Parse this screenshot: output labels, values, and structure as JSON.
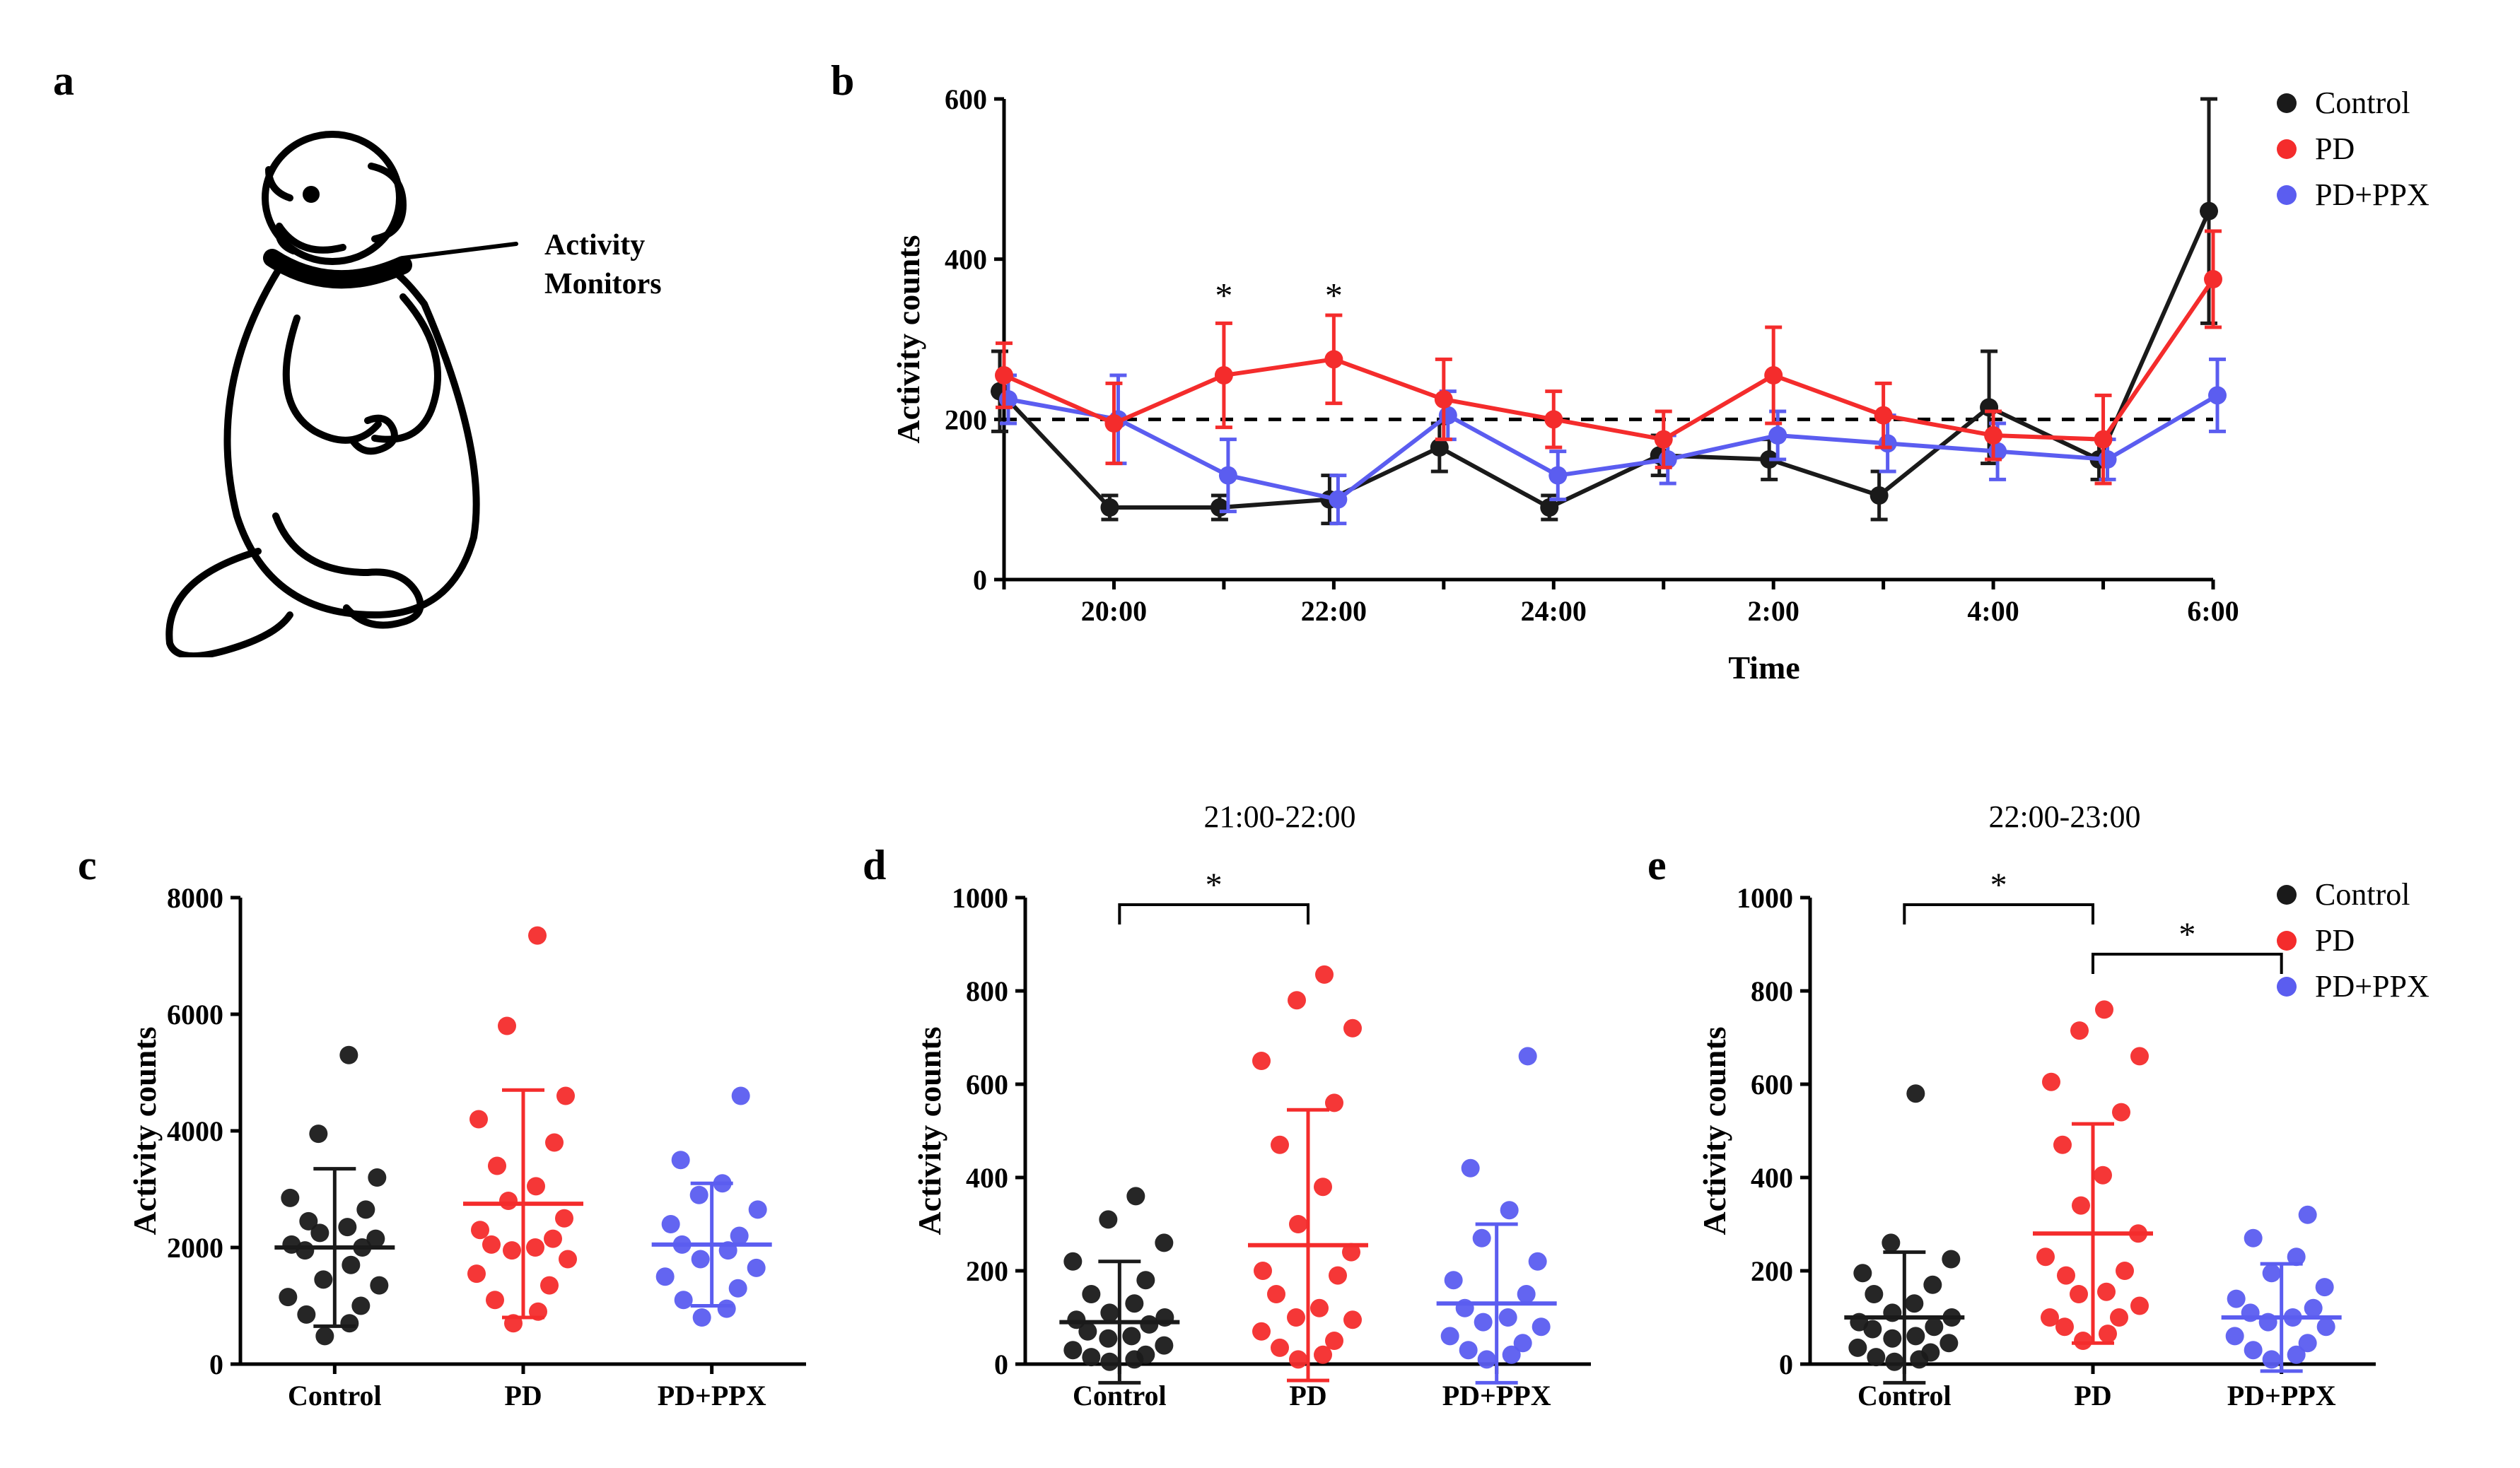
{
  "colors": {
    "control": "#1a1a1a",
    "pd": "#f42c2c",
    "pdppx": "#5b5df0",
    "axis": "#000000",
    "dashed": "#000000",
    "bg": "#ffffff"
  },
  "legend_labels": {
    "control": "Control",
    "pd": "PD",
    "pdppx": "PD+PPX"
  },
  "panel_labels": {
    "a": "a",
    "b": "b",
    "c": "c",
    "d": "d",
    "e": "e"
  },
  "panel_a": {
    "label_line1": "Activity",
    "label_line2": "Monitors"
  },
  "panel_b": {
    "type": "line",
    "ylabel": "Activity counts",
    "xlabel": "Time",
    "ylim": [
      0,
      600
    ],
    "ytick_step": 200,
    "dashed_ref": 200,
    "x_categories": [
      "19:00",
      "20:00",
      "21:00",
      "22:00",
      "23:00",
      "24:00",
      "1:00",
      "2:00",
      "3:00",
      "4:00",
      "5:00",
      "6:00"
    ],
    "x_tick_labels": [
      "",
      "20:00",
      "",
      "22:00",
      "",
      "24:00",
      "",
      "2:00",
      "",
      "4:00",
      "",
      "6:00"
    ],
    "significance": [
      {
        "x_index": 2,
        "symbol": "*"
      },
      {
        "x_index": 3,
        "symbol": "*"
      }
    ],
    "series": {
      "control": {
        "y": [
          235,
          90,
          90,
          100,
          165,
          90,
          155,
          150,
          105,
          215,
          150,
          460
        ],
        "err": [
          50,
          15,
          15,
          30,
          30,
          15,
          25,
          25,
          30,
          70,
          25,
          140
        ]
      },
      "pd": {
        "y": [
          255,
          195,
          255,
          275,
          225,
          200,
          175,
          255,
          205,
          180,
          175,
          375
        ],
        "err": [
          40,
          50,
          65,
          55,
          50,
          35,
          35,
          60,
          40,
          30,
          55,
          60
        ]
      },
      "pdppx": {
        "y": [
          225,
          200,
          130,
          100,
          205,
          130,
          150,
          180,
          170,
          160,
          150,
          230
        ],
        "err": [
          30,
          55,
          45,
          30,
          30,
          30,
          30,
          30,
          35,
          35,
          25,
          45
        ]
      }
    }
  },
  "panel_c": {
    "type": "scatter",
    "ylabel": "Activity counts",
    "ylim": [
      0,
      8000
    ],
    "ytick_step": 2000,
    "groups": [
      "Control",
      "PD",
      "PD+PPX"
    ],
    "stats": {
      "Control": {
        "mean": 2000,
        "sd": 1350
      },
      "PD": {
        "mean": 2750,
        "sd": 1950
      },
      "PD+PPX": {
        "mean": 2050,
        "sd": 1050
      }
    },
    "points": {
      "Control": [
        480,
        700,
        850,
        1000,
        1150,
        1350,
        1450,
        1700,
        1950,
        2050,
        2150,
        2250,
        2350,
        2450,
        2650,
        2850,
        3200,
        3950,
        5300,
        2000
      ],
      "PD": [
        700,
        900,
        1100,
        1350,
        1550,
        1800,
        1950,
        2050,
        2150,
        2300,
        2500,
        2800,
        3050,
        3400,
        3800,
        4200,
        4600,
        5800,
        7350,
        2000
      ],
      "PD+PPX": [
        800,
        950,
        1100,
        1300,
        1500,
        1650,
        1800,
        1950,
        2050,
        2200,
        2400,
        2650,
        2900,
        3100,
        3500,
        4600
      ]
    }
  },
  "panel_d": {
    "type": "scatter",
    "title": "21:00-22:00",
    "ylabel": "Activity counts",
    "ylim": [
      0,
      1000
    ],
    "ytick_step": 200,
    "groups": [
      "Control",
      "PD",
      "PD+PPX"
    ],
    "stats": {
      "Control": {
        "mean": 90,
        "sd": 130
      },
      "PD": {
        "mean": 255,
        "sd": 290
      },
      "PD+PPX": {
        "mean": 130,
        "sd": 170
      }
    },
    "brackets": [
      {
        "from": "Control",
        "to": "PD",
        "symbol": "*",
        "y": 380
      }
    ],
    "points": {
      "Control": [
        5,
        10,
        15,
        20,
        30,
        40,
        55,
        70,
        85,
        95,
        110,
        130,
        150,
        180,
        220,
        260,
        310,
        360,
        100,
        60
      ],
      "PD": [
        10,
        20,
        35,
        50,
        70,
        95,
        120,
        150,
        190,
        240,
        300,
        380,
        470,
        560,
        650,
        720,
        780,
        835,
        200,
        100
      ],
      "PD+PPX": [
        10,
        20,
        30,
        45,
        60,
        80,
        100,
        120,
        150,
        180,
        220,
        270,
        330,
        420,
        660,
        90
      ]
    }
  },
  "panel_e": {
    "type": "scatter",
    "title": "22:00-23:00",
    "ylabel": "Activity counts",
    "ylim": [
      0,
      1000
    ],
    "ytick_step": 200,
    "groups": [
      "Control",
      "PD",
      "PD+PPX"
    ],
    "stats": {
      "Control": {
        "mean": 100,
        "sd": 140
      },
      "PD": {
        "mean": 280,
        "sd": 235
      },
      "PD+PPX": {
        "mean": 100,
        "sd": 115
      }
    },
    "brackets": [
      {
        "from": "Control",
        "to": "PD",
        "symbol": "*",
        "y": 420
      },
      {
        "from": "PD",
        "to": "PD+PPX",
        "symbol": "*",
        "y": 370
      }
    ],
    "points": {
      "Control": [
        5,
        10,
        15,
        25,
        35,
        45,
        60,
        75,
        90,
        110,
        130,
        150,
        170,
        195,
        225,
        260,
        580,
        100,
        80,
        55
      ],
      "PD": [
        50,
        65,
        80,
        100,
        125,
        155,
        190,
        230,
        280,
        340,
        405,
        470,
        540,
        605,
        660,
        715,
        760,
        200,
        150,
        100
      ],
      "PD+PPX": [
        10,
        20,
        30,
        45,
        60,
        80,
        100,
        120,
        140,
        165,
        195,
        230,
        270,
        320,
        110,
        90
      ]
    }
  },
  "typography": {
    "panel_label_fontsize": 60,
    "axis_label_fontsize": 46,
    "tick_fontsize": 40,
    "legend_fontsize": 44
  }
}
